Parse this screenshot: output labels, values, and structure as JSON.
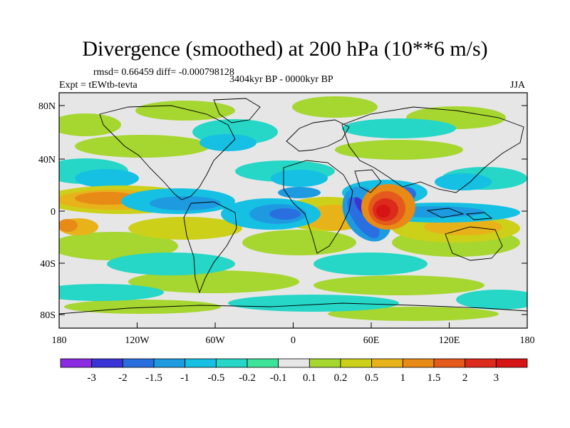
{
  "title": "Divergence (smoothed) at 200 hPa (10**6 m/s)",
  "stats_text": "rmsd= 0.66459 diff= -0.000798128",
  "experiment": "Expt = tEWtb-tevta",
  "period": "3404kyr BP - 0000kyr BP",
  "season": "JJA",
  "lat_labels": [
    "80N",
    "40N",
    "0",
    "40S",
    "80S"
  ],
  "lon_labels": [
    "180",
    "120W",
    "60W",
    "0",
    "60E",
    "120E",
    "180"
  ],
  "colorbar": {
    "labels": [
      "-3",
      "-2",
      "-1.5",
      "-1",
      "-0.5",
      "-0.2",
      "-0.1",
      "0.1",
      "0.2",
      "0.5",
      "1",
      "1.5",
      "2",
      "3"
    ],
    "colors": [
      "#8a2be2",
      "#3a33d6",
      "#2a6fe0",
      "#1e9be0",
      "#15c0e3",
      "#26d6c6",
      "#3ee39a",
      "#e6e6e6",
      "#a6d630",
      "#ccd019",
      "#e8b31a",
      "#e88a16",
      "#e4591c",
      "#dc2a1c",
      "#d61414"
    ]
  },
  "map_colors": {
    "ocean": "#e6e6e6",
    "coast": "#000000"
  }
}
